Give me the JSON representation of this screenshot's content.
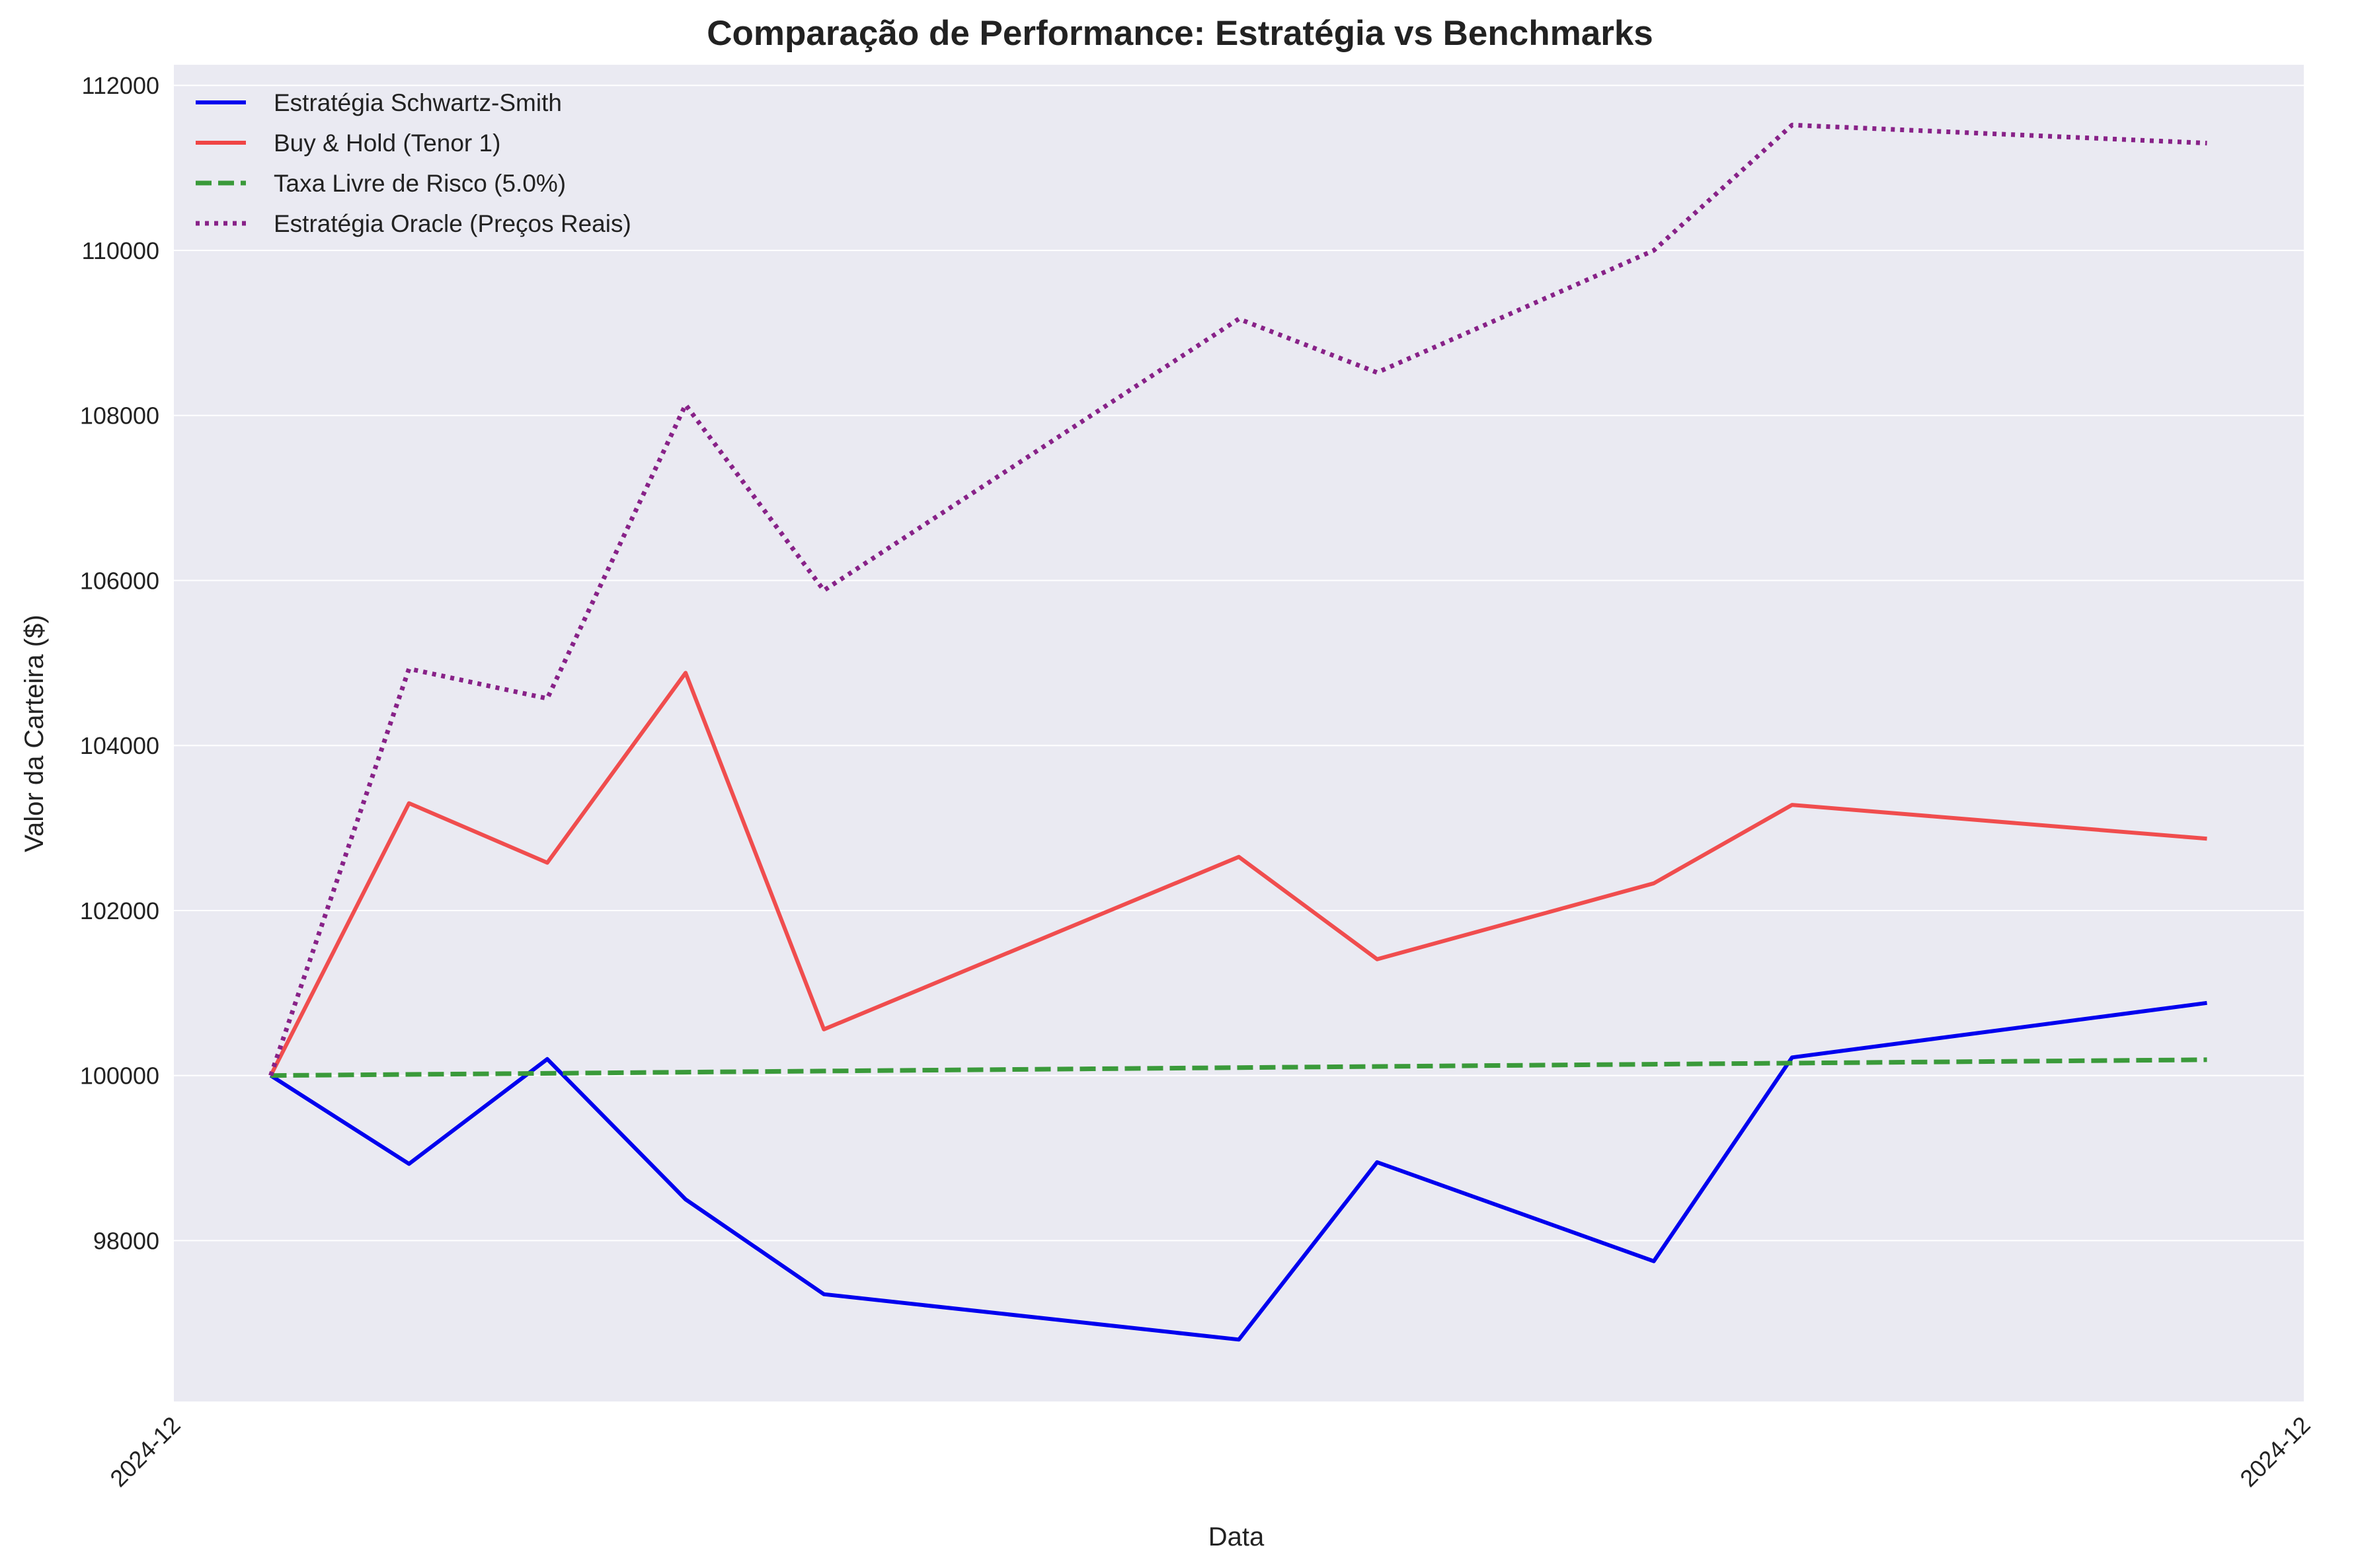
{
  "chart_data": {
    "type": "line",
    "title": "Comparação de Performance: Estratégia vs Benchmarks",
    "xlabel": "Data",
    "ylabel": "Valor da Carteira ($)",
    "x_tick_labels": [
      "2024-12",
      "2024-12"
    ],
    "x": [
      0,
      1,
      2,
      3,
      4,
      7,
      8,
      10,
      11,
      14
    ],
    "xlim": [
      -0.7,
      14.7
    ],
    "ylim": [
      96050,
      112250
    ],
    "y_ticks": [
      98000,
      100000,
      102000,
      104000,
      106000,
      108000,
      110000,
      112000
    ],
    "grid": true,
    "legend_position": "top-left",
    "background": "#eaeaf2",
    "series": [
      {
        "name": "Estratégia Schwartz-Smith",
        "color": "#0000ee",
        "style": "solid",
        "values": [
          100000,
          98930,
          100200,
          98500,
          97350,
          96800,
          98950,
          97750,
          100220,
          100880
        ]
      },
      {
        "name": "Buy & Hold (Tenor 1)",
        "color": "#f04545",
        "style": "solid",
        "values": [
          100000,
          103300,
          102580,
          104880,
          100560,
          102650,
          101410,
          102330,
          103280,
          102870
        ]
      },
      {
        "name": "Taxa Livre de Risco (5.0%)",
        "color": "#3a9a3a",
        "style": "dashed",
        "values": [
          100000,
          100014,
          100027,
          100041,
          100055,
          100096,
          100110,
          100137,
          100151,
          100192
        ]
      },
      {
        "name": "Estratégia Oracle (Preços Reais)",
        "color": "#882288",
        "style": "dotted",
        "values": [
          100000,
          104930,
          104570,
          108130,
          105880,
          109170,
          108520,
          110000,
          111520,
          111300
        ]
      }
    ]
  }
}
